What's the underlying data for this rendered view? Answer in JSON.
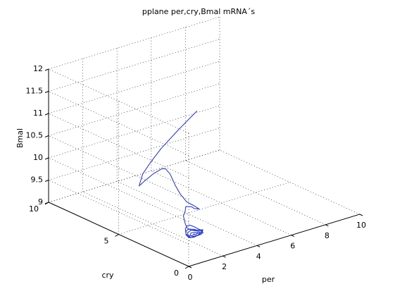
{
  "chart_data": {
    "type": "line",
    "projection": "3d",
    "title": "pplane per,cry,Bmal mRNA´s",
    "xlabel": "per",
    "ylabel": "cry",
    "zlabel": "Bmal",
    "xlim": [
      0,
      10
    ],
    "ylim": [
      0,
      10
    ],
    "zlim": [
      9,
      12
    ],
    "xticks": [
      "0",
      "2",
      "4",
      "6",
      "8",
      "10"
    ],
    "yticks": [
      "0",
      "5",
      "10"
    ],
    "zticks": [
      "9",
      "9.5",
      "10",
      "10.5",
      "11",
      "11.5",
      "12"
    ],
    "grid": true,
    "line_color": "#1f2fbf",
    "series": [
      {
        "points": [
          [
            5.4,
            6.0,
            11.0
          ],
          [
            4.3,
            6.0,
            10.7
          ],
          [
            3.3,
            6.0,
            10.4
          ],
          [
            2.5,
            5.8,
            10.2
          ],
          [
            1.9,
            5.6,
            10.05
          ],
          [
            1.4,
            5.2,
            9.95
          ],
          [
            1.2,
            5.0,
            9.95
          ],
          [
            1.45,
            4.9,
            10.05
          ],
          [
            1.8,
            4.7,
            10.2
          ],
          [
            2.1,
            4.5,
            10.3
          ],
          [
            2.25,
            4.4,
            10.3
          ],
          [
            2.35,
            4.2,
            10.2
          ],
          [
            2.5,
            4.0,
            9.95
          ],
          [
            2.7,
            3.9,
            9.75
          ],
          [
            3.0,
            3.8,
            9.55
          ],
          [
            3.3,
            3.6,
            9.45
          ],
          [
            3.4,
            3.4,
            9.4
          ],
          [
            3.1,
            3.4,
            9.45
          ],
          [
            2.8,
            3.2,
            9.55
          ],
          [
            2.45,
            3.2,
            9.6
          ],
          [
            2.25,
            3.0,
            9.55
          ],
          [
            2.15,
            3.0,
            9.45
          ],
          [
            2.1,
            2.8,
            9.3
          ],
          [
            2.2,
            2.8,
            9.2
          ],
          [
            2.35,
            2.7,
            9.15
          ],
          [
            2.5,
            2.6,
            9.15
          ],
          [
            2.65,
            2.5,
            9.15
          ],
          [
            2.8,
            2.4,
            9.15
          ],
          [
            2.75,
            2.4,
            9.1
          ],
          [
            2.55,
            2.5,
            9.08
          ],
          [
            2.3,
            2.6,
            9.05
          ],
          [
            2.15,
            2.6,
            9.05
          ],
          [
            2.05,
            2.7,
            9.1
          ],
          [
            2.1,
            2.8,
            9.2
          ],
          [
            2.2,
            2.8,
            9.25
          ],
          [
            2.35,
            2.8,
            9.25
          ],
          [
            2.55,
            2.7,
            9.2
          ],
          [
            2.7,
            2.6,
            9.15
          ],
          [
            2.8,
            2.5,
            9.12
          ],
          [
            2.8,
            2.4,
            9.08
          ],
          [
            2.6,
            2.45,
            9.05
          ],
          [
            2.35,
            2.5,
            9.02
          ],
          [
            2.15,
            2.6,
            9.02
          ],
          [
            2.05,
            2.7,
            9.08
          ],
          [
            2.1,
            2.75,
            9.15
          ],
          [
            2.25,
            2.75,
            9.18
          ],
          [
            2.45,
            2.7,
            9.16
          ],
          [
            2.65,
            2.6,
            9.13
          ],
          [
            2.8,
            2.5,
            9.1
          ],
          [
            2.75,
            2.45,
            9.05
          ],
          [
            2.5,
            2.5,
            9.03
          ],
          [
            2.25,
            2.55,
            9.02
          ],
          [
            2.1,
            2.6,
            9.05
          ],
          [
            2.15,
            2.7,
            9.12
          ],
          [
            2.35,
            2.7,
            9.15
          ],
          [
            2.6,
            2.6,
            9.12
          ],
          [
            2.75,
            2.5,
            9.08
          ],
          [
            2.6,
            2.5,
            9.04
          ],
          [
            2.35,
            2.55,
            9.03
          ],
          [
            2.2,
            2.6,
            9.06
          ],
          [
            2.3,
            2.65,
            9.1
          ],
          [
            2.5,
            2.6,
            9.1
          ],
          [
            2.65,
            2.55,
            9.08
          ],
          [
            2.55,
            2.55,
            9.06
          ],
          [
            2.4,
            2.58,
            9.06
          ],
          [
            2.45,
            2.6,
            9.08
          ]
        ]
      }
    ]
  }
}
